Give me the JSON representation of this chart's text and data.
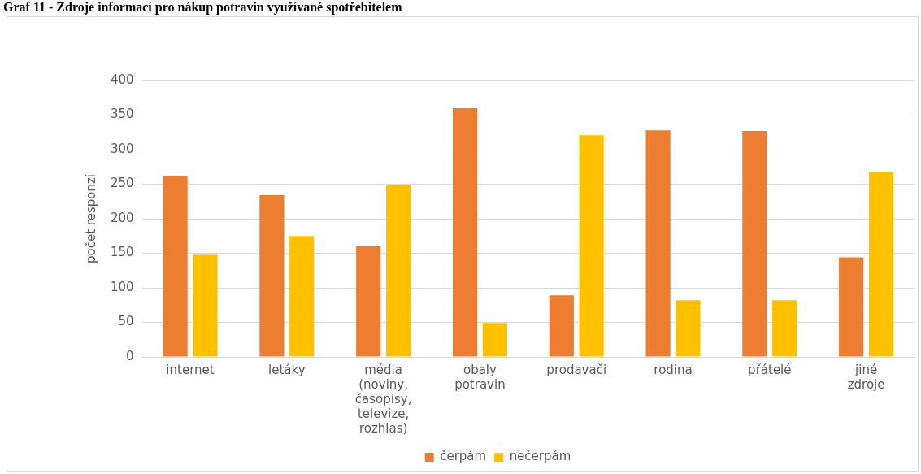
{
  "chart_data": {
    "type": "bar",
    "title": "Graf 11 - Zdroje informací pro nákup potravin využívané spotřebitelem",
    "ylabel": "počet responzí",
    "categories": [
      "internet",
      "letáky",
      "média (noviny, časopisy, televize, rozhlas)",
      "obaly potravin",
      "prodavači",
      "rodina",
      "přátelé",
      "jiné zdroje"
    ],
    "series": [
      {
        "name": "čerpám",
        "color": "#ed7d31",
        "values": [
          262,
          234,
          160,
          360,
          89,
          328,
          327,
          144
        ]
      },
      {
        "name": "nečerpám",
        "color": "#ffc000",
        "values": [
          148,
          175,
          249,
          49,
          321,
          82,
          82,
          267
        ]
      }
    ],
    "ylim": [
      0,
      400
    ],
    "yticks": [
      0,
      50,
      100,
      150,
      200,
      250,
      300,
      350,
      400
    ],
    "grid": "y",
    "legend": "bottom"
  }
}
